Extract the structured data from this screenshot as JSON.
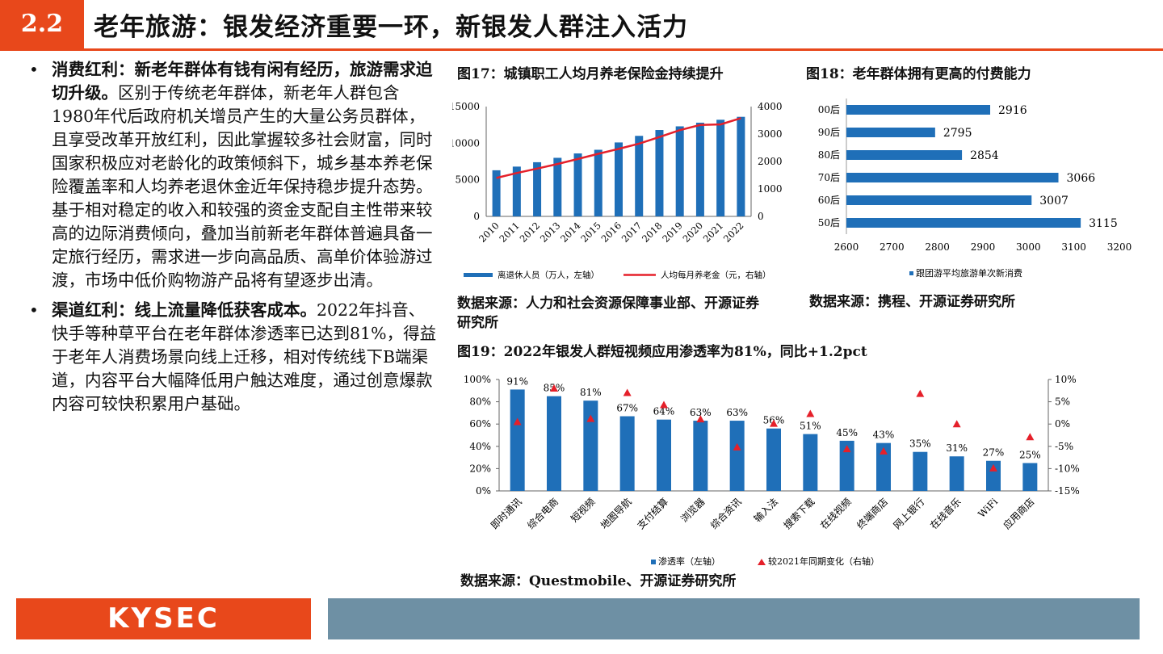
{
  "header": {
    "number": "2.2",
    "title": "老年旅游：银发经济重要一环，新银发人群注入活力"
  },
  "left": {
    "bullet1_bold": "消费红利：新老年群体有钱有闲有经历，旅游需求迫切升级。",
    "bullet1_text": "区别于传统老年群体，新老年人群包含1980年代后政府机关增员产生的大量公务员群体，且享受改革开放红利，因此掌握较多社会财富，同时国家积极应对老龄化的政策倾斜下，城乡基本养老保险覆盖率和人均养老退休金近年保持稳步提升态势。基于相对稳定的收入和较强的资金支配自主性带来较高的边际消费倾向，叠加当前新老年群体普遍具备一定旅行经历，需求进一步向高品质、高单价体验游过渡，市场中低价购物游产品将有望逐步出清。",
    "bullet2_bold": "渠道红利：线上流量降低获客成本。",
    "bullet2_text": "2022年抖音、快手等种草平台在老年群体渗透率已达到81%，得益于老年人消费场景向线上迁移，相对传统线下B端渠道，内容平台大幅降低用户触达难度，通过创意爆款内容可较快积累用户基础。"
  },
  "fig17": {
    "caption": "图17：城镇职工人均月养老保险金持续提升",
    "source": "数据来源：人力和社会资源保障事业部、开源证券研究所"
  },
  "fig18": {
    "caption": "图18：老年群体拥有更高的付费能力",
    "source": "数据来源：携程、开源证券研究所"
  },
  "fig19": {
    "caption": "图19：2022年银发人群短视频应用渗透率为81%，同比+1.2pct",
    "source": "数据来源：Questmobile、开源证券研究所"
  },
  "footer": {
    "logo": "KYSEC"
  },
  "chart_data": [
    {
      "type": "bar+line",
      "categories": [
        "2010",
        "2011",
        "2012",
        "2013",
        "2014",
        "2015",
        "2016",
        "2017",
        "2018",
        "2019",
        "2020",
        "2021",
        "2022"
      ],
      "series": [
        {
          "name": "离退休人员（万人，左轴）",
          "type": "bar",
          "axis": "left",
          "color": "#1f6fb8",
          "values": [
            6300,
            6800,
            7400,
            8000,
            8600,
            9100,
            10100,
            11000,
            11800,
            12300,
            12800,
            13200,
            13600
          ]
        },
        {
          "name": "人均每月养老金（元，右轴）",
          "type": "line",
          "axis": "right",
          "color": "#e5202a",
          "values": [
            1400,
            1580,
            1740,
            1910,
            2090,
            2280,
            2460,
            2650,
            2890,
            3140,
            3330,
            3350,
            3580
          ]
        }
      ],
      "y_left": {
        "ticks": [
          "0",
          "5000",
          "10000",
          "15000"
        ],
        "range": [
          0,
          15000
        ]
      },
      "y_right": {
        "ticks": [
          "0",
          "1000",
          "2000",
          "3000",
          "4000"
        ],
        "range": [
          0,
          4000
        ]
      }
    },
    {
      "type": "horizontal-bar",
      "categories": [
        "00后",
        "90后",
        "80后",
        "70后",
        "60后",
        "50后"
      ],
      "series": [
        {
          "name": "跟团游平均旅游单次新消费",
          "color": "#1f6fb8",
          "values": [
            2916,
            2795,
            2854,
            3066,
            3007,
            3115
          ]
        }
      ],
      "data_labels": [
        "2916",
        "2795",
        "2854",
        "3066",
        "3007",
        "3115"
      ],
      "x_axis": {
        "ticks": [
          "2600",
          "2700",
          "2800",
          "2900",
          "3000",
          "3100",
          "3200"
        ],
        "range": [
          2600,
          3200
        ]
      }
    },
    {
      "type": "bar+scatter",
      "categories": [
        "即时通讯",
        "综合电商",
        "短视频",
        "地图导航",
        "支付结算",
        "浏览器",
        "综合资讯",
        "输入法",
        "搜索下载",
        "在线视频",
        "终端商店",
        "网上银行",
        "在线音乐",
        "WiFi",
        "应用商店"
      ],
      "series": [
        {
          "name": "渗透率（左轴）",
          "type": "bar",
          "axis": "left",
          "color": "#1f6fb8",
          "values": [
            91,
            85,
            81,
            67,
            64,
            63,
            63,
            56,
            51,
            45,
            43,
            35,
            31,
            27,
            25
          ],
          "labels": [
            "91%",
            "85%",
            "81%",
            "67%",
            "64%",
            "63%",
            "63%",
            "56%",
            "51%",
            "45%",
            "43%",
            "35%",
            "31%",
            "27%",
            "25%"
          ]
        },
        {
          "name": "较2021年同期变化（右轴）",
          "type": "scatter",
          "axis": "right",
          "color": "#e5202a",
          "values": [
            0.5,
            8.0,
            1.2,
            7.0,
            4.3,
            1.1,
            -5.2,
            0.1,
            2.3,
            -5.6,
            -6.1,
            6.8,
            0.0,
            -9.9,
            -2.9
          ]
        }
      ],
      "y_left": {
        "ticks": [
          "0%",
          "20%",
          "40%",
          "60%",
          "80%",
          "100%"
        ],
        "range": [
          0,
          100
        ]
      },
      "y_right": {
        "ticks": [
          "-15%",
          "-10%",
          "-5%",
          "0%",
          "5%",
          "10%"
        ],
        "range": [
          -15,
          10
        ]
      }
    }
  ]
}
